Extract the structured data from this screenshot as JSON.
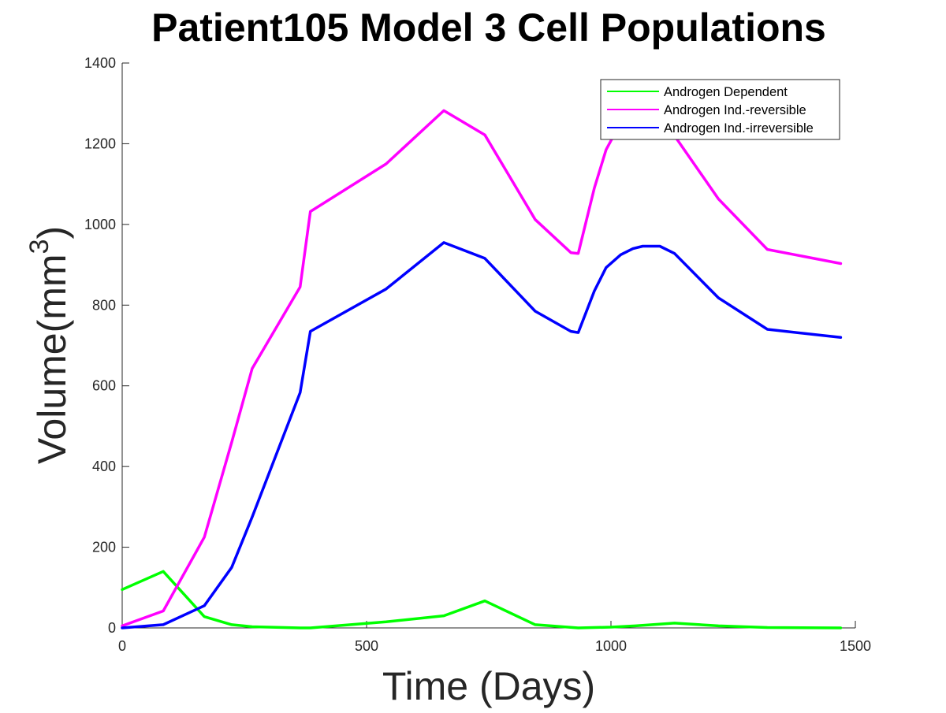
{
  "chart_data": {
    "type": "line",
    "title": "Patient105 Model 3 Cell Populations",
    "xlabel": "Time (Days)",
    "ylabel_main": "Volume(mm",
    "ylabel_sup": "3",
    "ylabel_close": ")",
    "xlim": [
      0,
      1500
    ],
    "ylim": [
      0,
      1400
    ],
    "xticks": [
      "0",
      "500",
      "1000",
      "1500"
    ],
    "xtick_values": [
      0,
      500,
      1000,
      1500
    ],
    "yticks": [
      "0",
      "200",
      "400",
      "600",
      "800",
      "1000",
      "1200",
      "1400"
    ],
    "ytick_values": [
      0,
      200,
      400,
      600,
      800,
      1000,
      1200,
      1400
    ],
    "grid": false,
    "legend_position": "top-right",
    "series": [
      {
        "name": "Androgen Dependent",
        "color": "#00ff00",
        "x": [
          0,
          84,
          168,
          224,
          266,
          364,
          385,
          540,
          658,
          742,
          845,
          933,
          1000,
          1050,
          1130,
          1220,
          1320,
          1470
        ],
        "y": [
          95,
          140,
          28,
          8,
          3,
          0,
          0,
          15,
          30,
          67,
          8,
          0,
          2,
          5,
          12,
          5,
          1,
          0
        ]
      },
      {
        "name": "Androgen Ind.-reversible",
        "color": "#ff00ff",
        "x": [
          0,
          84,
          168,
          224,
          266,
          364,
          385,
          540,
          658,
          742,
          845,
          918,
          933,
          966,
          990,
          1010,
          1030,
          1060,
          1100,
          1130,
          1220,
          1320,
          1470
        ],
        "y": [
          5,
          42,
          225,
          460,
          643,
          845,
          1032,
          1150,
          1282,
          1222,
          1012,
          930,
          928,
          1090,
          1185,
          1230,
          1255,
          1262,
          1260,
          1220,
          1063,
          938,
          903
        ]
      },
      {
        "name": "Androgen Ind.-irreversible",
        "color": "#0000ff",
        "x": [
          0,
          84,
          168,
          224,
          266,
          364,
          385,
          540,
          658,
          742,
          845,
          918,
          933,
          966,
          990,
          1020,
          1045,
          1065,
          1100,
          1130,
          1220,
          1320,
          1470
        ],
        "y": [
          0,
          8,
          55,
          150,
          275,
          583,
          735,
          840,
          955,
          916,
          785,
          735,
          732,
          835,
          893,
          925,
          940,
          946,
          946,
          928,
          818,
          740,
          720
        ]
      }
    ]
  }
}
